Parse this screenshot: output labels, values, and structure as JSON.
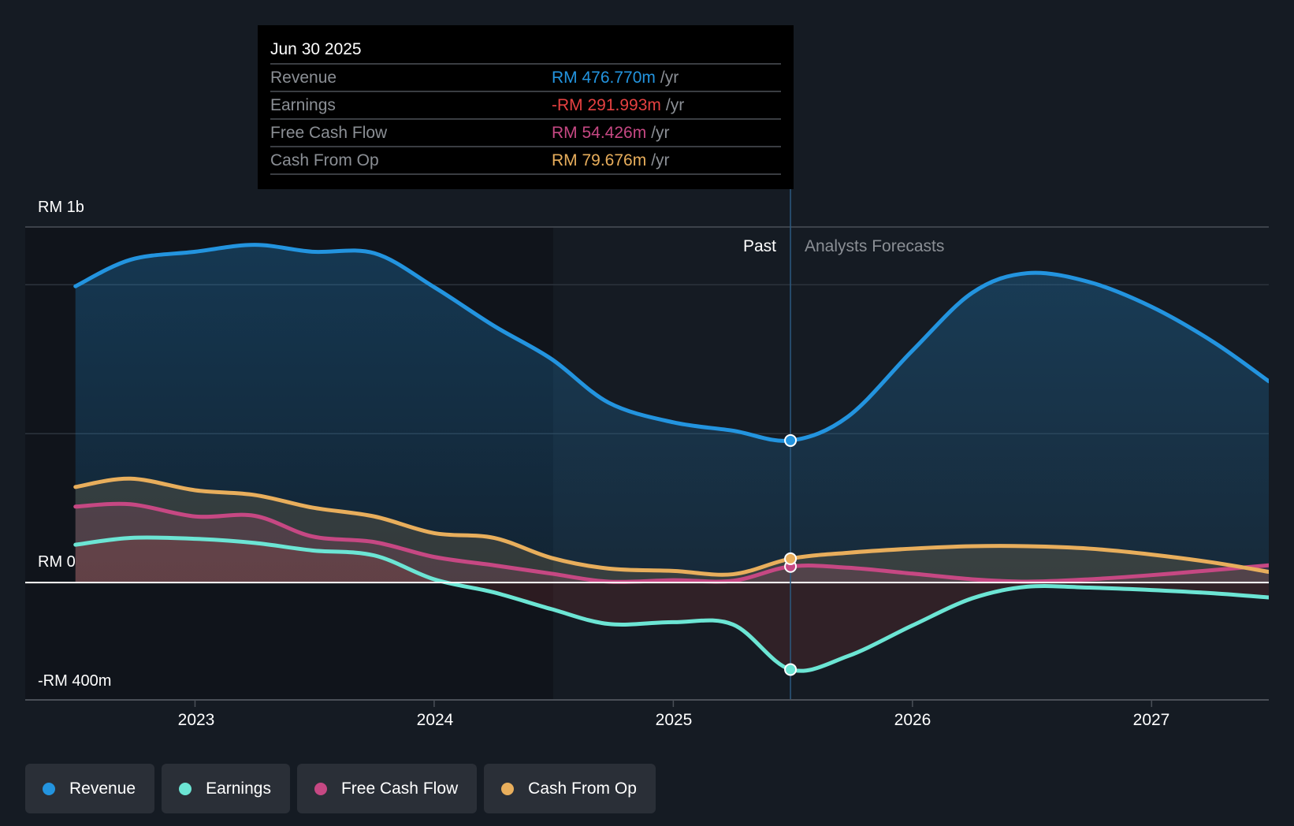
{
  "tooltip": {
    "date": "Jun 30 2025",
    "rows": [
      {
        "label": "Revenue",
        "value": "RM 476.770m",
        "unit": "/yr",
        "color": "#2394df"
      },
      {
        "label": "Earnings",
        "value": "-RM 291.993m",
        "unit": "/yr",
        "color": "#e64141"
      },
      {
        "label": "Free Cash Flow",
        "value": "RM 54.426m",
        "unit": "/yr",
        "color": "#c64883"
      },
      {
        "label": "Cash From Op",
        "value": "RM 79.676m",
        "unit": "/yr",
        "color": "#e8ae5c"
      }
    ]
  },
  "regions": {
    "past": "Past",
    "forecast": "Analysts Forecasts"
  },
  "legend": [
    {
      "label": "Revenue",
      "color": "#2394df"
    },
    {
      "label": "Earnings",
      "color": "#6ce5d4"
    },
    {
      "label": "Free Cash Flow",
      "color": "#c64883"
    },
    {
      "label": "Cash From Op",
      "color": "#e8ae5c"
    }
  ],
  "chart_data": {
    "type": "line",
    "title": "",
    "xlabel": "",
    "ylabel": "",
    "y_tick_labels": [
      "RM 1b",
      "RM 0",
      "-RM 400m"
    ],
    "x_tick_labels": [
      "2023",
      "2024",
      "2025",
      "2026",
      "2027"
    ],
    "x_ticks": [
      2023,
      2024,
      2025,
      2026,
      2027
    ],
    "xlim": [
      2022.29,
      2027.49
    ],
    "ylim": [
      -394,
      1194
    ],
    "gridlines_m": [
      1194,
      1000,
      500,
      0
    ],
    "highlight_x": 2025.49,
    "past_shade_start": 2024.49,
    "grid": true,
    "legend_position": "bottom-left",
    "x": [
      2022.5,
      2022.73,
      2023.0,
      2023.25,
      2023.49,
      2023.75,
      2024.0,
      2024.25,
      2024.49,
      2024.73,
      2025.0,
      2025.25,
      2025.49,
      2025.73,
      2026.0,
      2026.25,
      2026.48,
      2026.74,
      2027.0,
      2027.26,
      2027.49
    ],
    "forecast_start_index": 12,
    "series": [
      {
        "name": "Revenue",
        "color": "#2394df",
        "values": [
          995,
          1084,
          1111,
          1134,
          1111,
          1106,
          992,
          862,
          751,
          604,
          538,
          510,
          477,
          557,
          779,
          973,
          1039,
          1009,
          926,
          807,
          676
        ]
      },
      {
        "name": "Earnings",
        "color": "#6ce5d4",
        "values": [
          127,
          150,
          147,
          133,
          108,
          91,
          11,
          -33,
          -89,
          -139,
          -133,
          -141,
          -292,
          -247,
          -144,
          -53,
          -14,
          -17,
          -25,
          -36,
          -50
        ]
      },
      {
        "name": "Free Cash Flow",
        "color": "#c64883",
        "values": [
          255,
          263,
          222,
          224,
          155,
          136,
          86,
          58,
          30,
          3,
          8,
          6,
          54,
          50,
          30,
          11,
          3,
          11,
          25,
          42,
          58
        ]
      },
      {
        "name": "Cash From Op",
        "color": "#e8ae5c",
        "values": [
          321,
          349,
          310,
          294,
          252,
          222,
          166,
          150,
          83,
          47,
          39,
          28,
          80,
          100,
          114,
          122,
          122,
          114,
          94,
          67,
          36
        ]
      }
    ]
  }
}
